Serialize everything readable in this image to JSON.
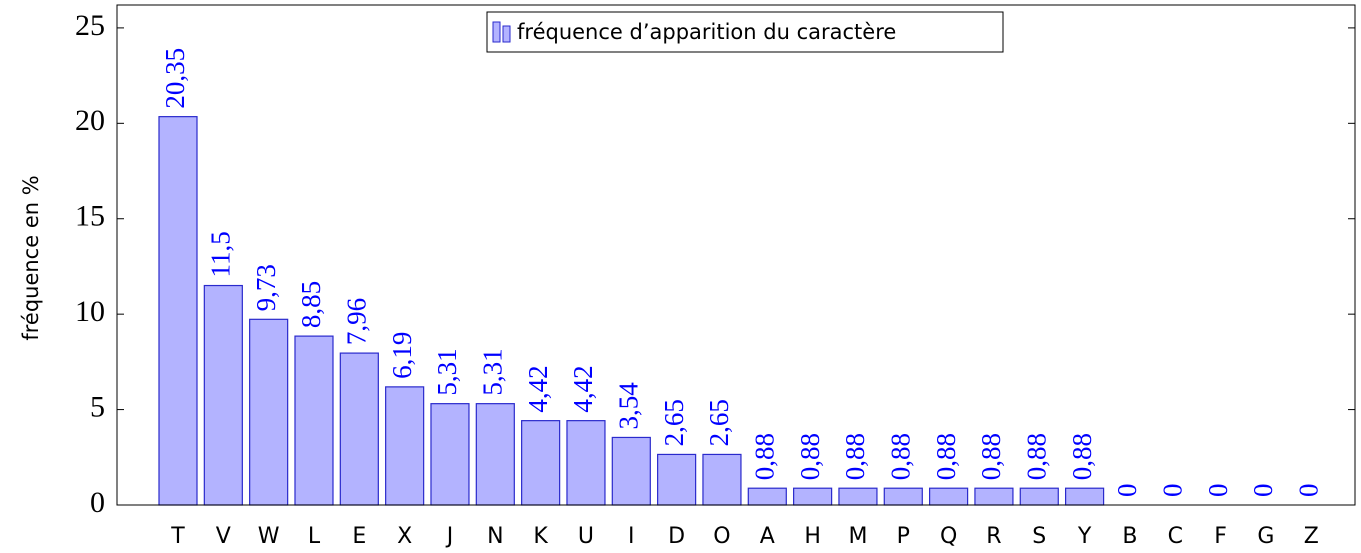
{
  "chart_data": {
    "type": "bar",
    "ylabel": "fréquence en %",
    "categories": [
      "T",
      "V",
      "W",
      "L",
      "E",
      "X",
      "J",
      "N",
      "K",
      "U",
      "I",
      "D",
      "O",
      "A",
      "H",
      "M",
      "P",
      "Q",
      "R",
      "S",
      "Y",
      "B",
      "C",
      "F",
      "G",
      "Z"
    ],
    "series": [
      {
        "name": "fréquence d’apparition du caractère",
        "color": "#b3b3ff",
        "edge_color": "#2a2acc",
        "label_color": "#0000ff",
        "values": [
          20.35,
          11.5,
          9.73,
          8.85,
          7.96,
          6.19,
          5.31,
          5.31,
          4.42,
          4.42,
          3.54,
          2.65,
          2.65,
          0.88,
          0.88,
          0.88,
          0.88,
          0.88,
          0.88,
          0.88,
          0.88,
          0,
          0,
          0,
          0,
          0
        ],
        "value_labels": [
          "20,35",
          "11,5",
          "9,73",
          "8,85",
          "7,96",
          "6,19",
          "5,31",
          "5,31",
          "4,42",
          "4,42",
          "3,54",
          "2,65",
          "2,65",
          "0,88",
          "0,88",
          "0,88",
          "0,88",
          "0,88",
          "0,88",
          "0,88",
          "0,88",
          "0",
          "0",
          "0",
          "0",
          "0"
        ]
      }
    ],
    "ylim": [
      0,
      26.2
    ],
    "yticks": [
      0,
      5,
      10,
      15,
      20,
      25
    ],
    "legend": "top"
  }
}
